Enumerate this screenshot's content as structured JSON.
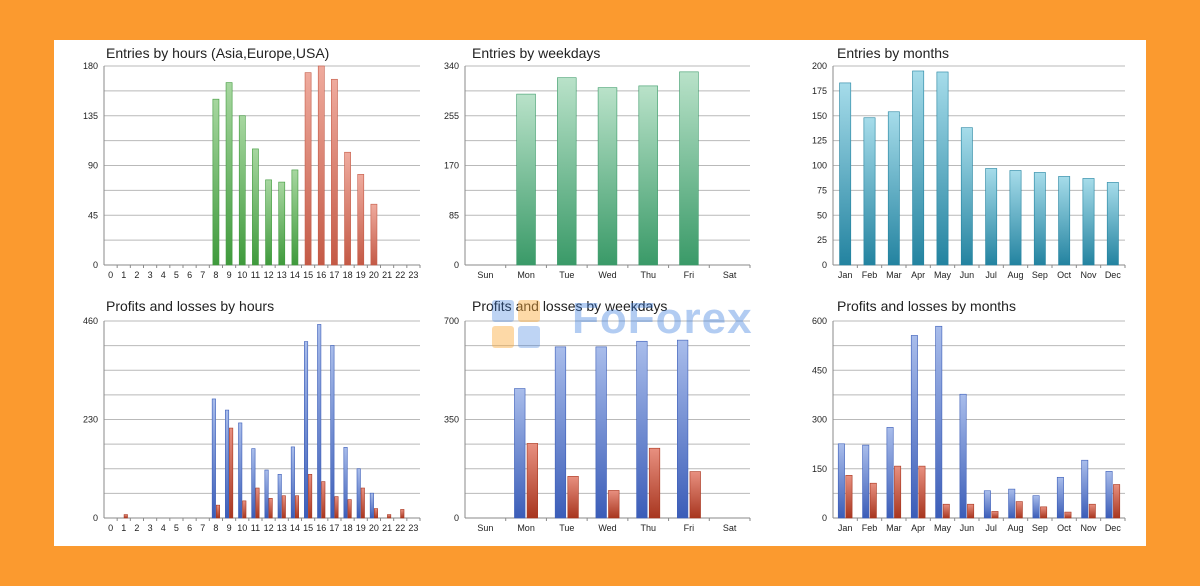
{
  "watermark": {
    "text": "FoForex"
  },
  "colors": {
    "green_bar": "#3f9a3c",
    "green_light": "#a7d7a0",
    "red_bar": "#c45a46",
    "red_light": "#efab9e",
    "mint_bar": "#3a9a68",
    "mint_light": "#b9e2c9",
    "teal_bar": "#2383a0",
    "teal_light": "#a6dcea",
    "blue_bar": "#3b5db8",
    "blue_light": "#a9bdeb",
    "dark_red_bar": "#a8361f",
    "dark_red_light": "#e89080"
  },
  "chart_data": [
    {
      "id": "entries-hours",
      "type": "bar",
      "title": "Entries by hours (Asia,Europe,USA)",
      "categories": [
        "0",
        "1",
        "2",
        "3",
        "4",
        "5",
        "6",
        "7",
        "8",
        "9",
        "10",
        "11",
        "12",
        "13",
        "14",
        "15",
        "16",
        "17",
        "18",
        "19",
        "20",
        "21",
        "22",
        "23"
      ],
      "series": [
        {
          "name": "Entries",
          "values": [
            0,
            0,
            0,
            0,
            0,
            0,
            0,
            0,
            150,
            165,
            135,
            105,
            77,
            75,
            86,
            174,
            180,
            168,
            102,
            82,
            55,
            0,
            0,
            0
          ],
          "colors": [
            "green",
            "green",
            "green",
            "green",
            "green",
            "green",
            "green",
            "green",
            "green",
            "green",
            "green",
            "green",
            "green",
            "green",
            "green",
            "red",
            "red",
            "red",
            "red",
            "red",
            "red",
            "red",
            "red",
            "red"
          ]
        }
      ],
      "ylim": [
        0,
        180
      ],
      "yticks": [
        0,
        45,
        90,
        135,
        180
      ]
    },
    {
      "id": "entries-weekdays",
      "type": "bar",
      "title": "Entries by weekdays",
      "categories": [
        "Sun",
        "Mon",
        "Tue",
        "Wed",
        "Thu",
        "Fri",
        "Sat"
      ],
      "series": [
        {
          "name": "Entries",
          "values": [
            0,
            292,
            320,
            303,
            306,
            330,
            0
          ],
          "colors": [
            "mint"
          ]
        }
      ],
      "ylim": [
        0,
        340
      ],
      "yticks": [
        0,
        85,
        170,
        255,
        340
      ]
    },
    {
      "id": "entries-months",
      "type": "bar",
      "title": "Entries by months",
      "categories": [
        "Jan",
        "Feb",
        "Mar",
        "Apr",
        "May",
        "Jun",
        "Jul",
        "Aug",
        "Sep",
        "Oct",
        "Nov",
        "Dec"
      ],
      "series": [
        {
          "name": "Entries",
          "values": [
            183,
            148,
            154,
            195,
            194,
            138,
            97,
            95,
            93,
            89,
            87,
            83
          ],
          "colors": [
            "teal"
          ]
        }
      ],
      "ylim": [
        0,
        200
      ],
      "yticks": [
        0,
        25,
        50,
        75,
        100,
        125,
        150,
        175,
        200
      ]
    },
    {
      "id": "pl-hours",
      "type": "bar",
      "title": "Profits and losses by hours",
      "categories": [
        "0",
        "1",
        "2",
        "3",
        "4",
        "5",
        "6",
        "7",
        "8",
        "9",
        "10",
        "11",
        "12",
        "13",
        "14",
        "15",
        "16",
        "17",
        "18",
        "19",
        "20",
        "21",
        "22",
        "23"
      ],
      "series": [
        {
          "name": "Profits",
          "values": [
            0,
            0,
            0,
            0,
            0,
            0,
            0,
            0,
            278,
            252,
            222,
            162,
            112,
            102,
            166,
            412,
            452,
            403,
            165,
            115,
            58,
            0,
            0,
            0
          ],
          "colors": [
            "blue"
          ]
        },
        {
          "name": "Losses",
          "values": [
            0,
            8,
            0,
            0,
            0,
            0,
            0,
            0,
            30,
            210,
            40,
            70,
            46,
            52,
            52,
            102,
            85,
            50,
            43,
            70,
            22,
            8,
            20,
            0
          ],
          "colors": [
            "dark_red"
          ]
        }
      ],
      "ylim": [
        0,
        460
      ],
      "yticks": [
        0,
        230,
        460
      ]
    },
    {
      "id": "pl-weekdays",
      "type": "bar",
      "title": "Profits and losses by weekdays",
      "categories": [
        "Sun",
        "Mon",
        "Tue",
        "Wed",
        "Thu",
        "Fri",
        "Sat"
      ],
      "series": [
        {
          "name": "Profits",
          "values": [
            0,
            460,
            608,
            608,
            628,
            632,
            0
          ],
          "colors": [
            "blue"
          ]
        },
        {
          "name": "Losses",
          "values": [
            0,
            265,
            148,
            98,
            248,
            165,
            0
          ],
          "colors": [
            "dark_red"
          ]
        }
      ],
      "ylim": [
        0,
        700
      ],
      "yticks": [
        0,
        350,
        700
      ]
    },
    {
      "id": "pl-months",
      "type": "bar",
      "title": "Profits and losses by months",
      "categories": [
        "Jan",
        "Feb",
        "Mar",
        "Apr",
        "May",
        "Jun",
        "Jul",
        "Aug",
        "Sep",
        "Oct",
        "Nov",
        "Dec"
      ],
      "series": [
        {
          "name": "Profits",
          "values": [
            226,
            222,
            276,
            556,
            584,
            377,
            83,
            88,
            68,
            124,
            176,
            142
          ],
          "colors": [
            "blue"
          ]
        },
        {
          "name": "Losses",
          "values": [
            130,
            106,
            158,
            158,
            42,
            42,
            20,
            50,
            34,
            18,
            42,
            102
          ],
          "colors": [
            "dark_red"
          ]
        }
      ],
      "ylim": [
        0,
        600
      ],
      "yticks": [
        0,
        150,
        300,
        450,
        600
      ]
    }
  ]
}
